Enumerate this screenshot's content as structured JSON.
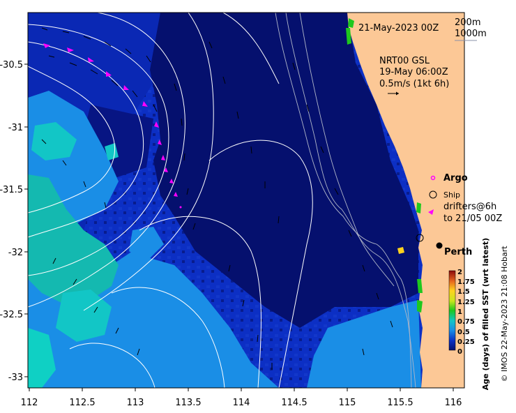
{
  "map": {
    "date_label": "21-May-2023 00Z",
    "contour_legend": [
      "200m",
      "1000m"
    ],
    "product": "NRT00 GSL",
    "field_time": "19-May 06:00Z",
    "scale_label": "0.5m/s (1kt 6h)",
    "legend": {
      "argo": "Argo",
      "ship": "Ship",
      "drifters_line1": "drifters@6h",
      "drifters_line2": "to 21/05 00Z"
    },
    "city": "Perth",
    "colorbar_title": "Age (days) of filled SST (wrt latest)",
    "credit": "© IMOS 22-May-2023 21:08 Hobart",
    "x_ticks": [
      "112",
      "112.5",
      "113",
      "113.5",
      "114",
      "114.5",
      "115",
      "115.5",
      "116"
    ],
    "y_ticks": [
      "-30.5",
      "-31",
      "-31.5",
      "-32",
      "-32.5",
      "-33"
    ],
    "colorbar_ticks": [
      "2",
      "1.75",
      "1.5",
      "1.25",
      "1",
      "0.75",
      "0.5",
      "0.25",
      "0"
    ],
    "colors": {
      "ocean_deep": "#05106e",
      "ocean_mid": "#0c2fc4",
      "ocean_light": "#1a8ee6",
      "cyan": "#12c6c6",
      "land": "#fcc896",
      "coast_green": "#1ec81e",
      "drifter": "#ff00ff"
    }
  }
}
